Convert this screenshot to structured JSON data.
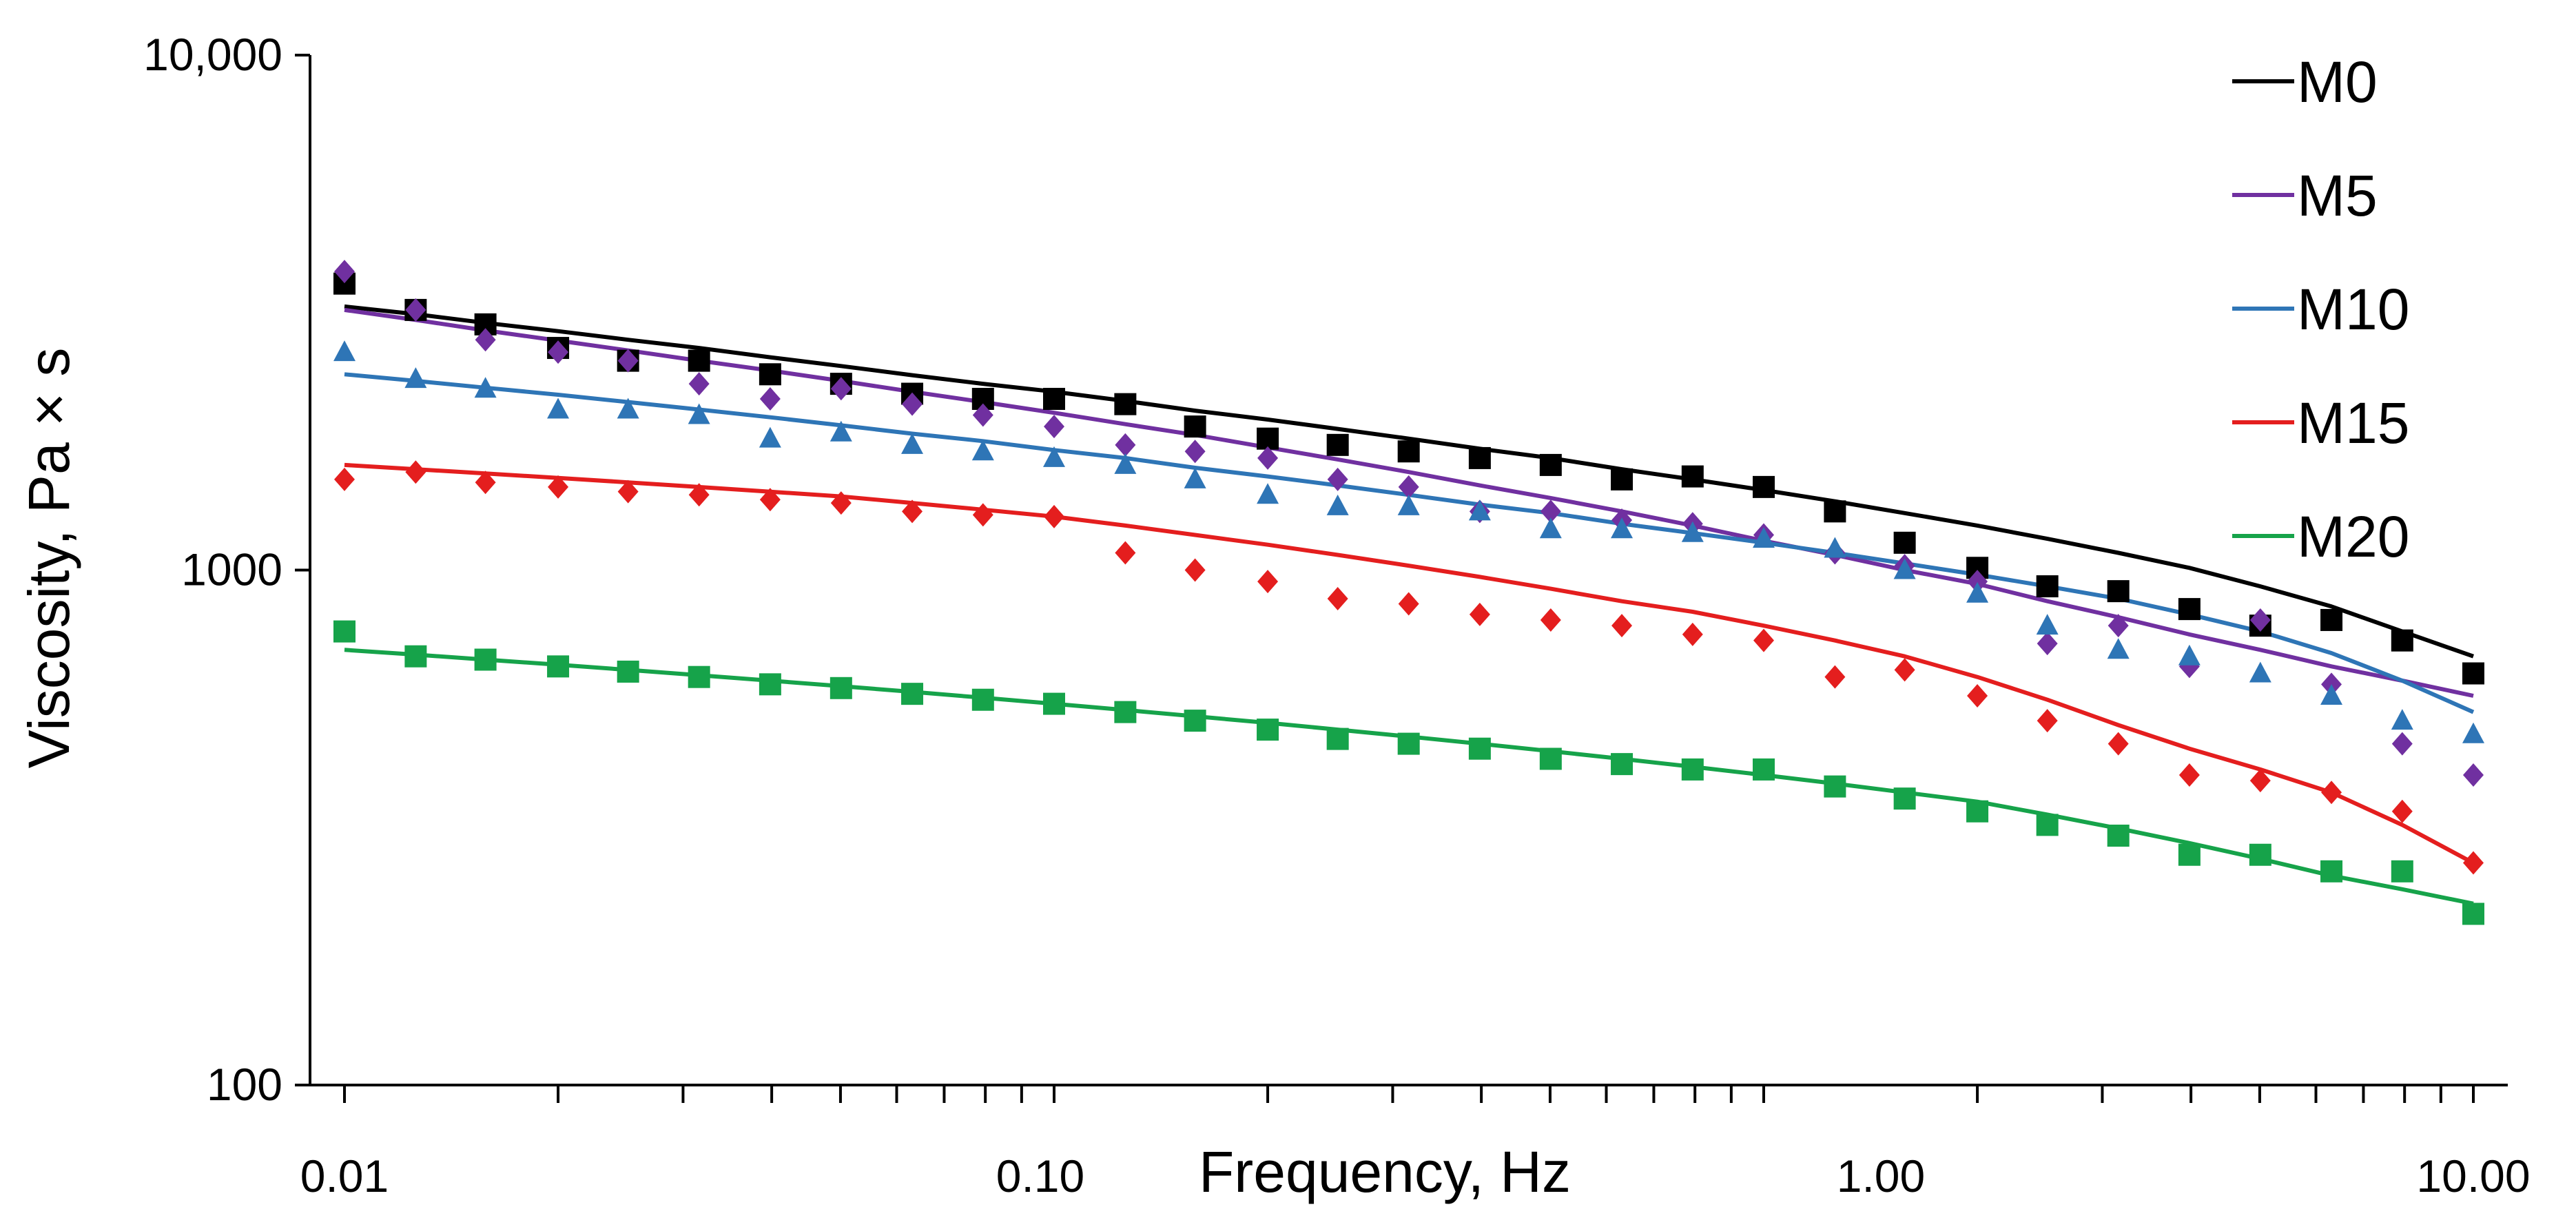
{
  "chart_data": {
    "type": "scatter",
    "title": "",
    "xlabel": "Frequency, Hz",
    "ylabel": "Viscosity, Pa × s",
    "xscale": "log",
    "yscale": "log",
    "xlim": [
      0.01,
      10
    ],
    "ylim": [
      100,
      10000
    ],
    "grid": false,
    "legend_position": "top-right",
    "x_tick_labels": [
      {
        "value": 0.01,
        "label": "0.01"
      },
      {
        "value": 0.1,
        "label": "0.10"
      },
      {
        "value": 1,
        "label": "1.00"
      },
      {
        "value": 10,
        "label": "10.00"
      }
    ],
    "y_tick_labels": [
      {
        "value": 100,
        "label": "100"
      },
      {
        "value": 1000,
        "label": "1000"
      },
      {
        "value": 10000,
        "label": "10,000"
      }
    ],
    "x": [
      0.01,
      0.0126,
      0.0158,
      0.02,
      0.0251,
      0.0316,
      0.0398,
      0.0501,
      0.0631,
      0.0794,
      0.1,
      0.126,
      0.158,
      0.2,
      0.251,
      0.316,
      0.398,
      0.501,
      0.631,
      0.794,
      1.0,
      1.26,
      1.58,
      2.0,
      2.51,
      3.16,
      3.98,
      5.01,
      6.31,
      7.94,
      10.0
    ],
    "series": [
      {
        "name": "M0",
        "color": "#000000",
        "marker": "square",
        "values": [
          3600,
          3200,
          3000,
          2700,
          2550,
          2550,
          2400,
          2300,
          2200,
          2150,
          2150,
          2100,
          1900,
          1800,
          1750,
          1700,
          1650,
          1600,
          1500,
          1520,
          1450,
          1300,
          1130,
          1010,
          930,
          910,
          840,
          780,
          800,
          730,
          630
        ],
        "fit": [
          3250,
          3140,
          3020,
          2910,
          2800,
          2700,
          2590,
          2490,
          2390,
          2300,
          2220,
          2130,
          2040,
          1960,
          1880,
          1800,
          1720,
          1650,
          1570,
          1500,
          1430,
          1360,
          1290,
          1220,
          1150,
          1080,
          1010,
          930,
          850,
          760,
          680
        ]
      },
      {
        "name": "M5",
        "color": "#7030A0",
        "marker": "diamond",
        "values": [
          3800,
          3200,
          2800,
          2650,
          2550,
          2300,
          2150,
          2250,
          2100,
          2000,
          1900,
          1750,
          1700,
          1650,
          1500,
          1450,
          1300,
          1300,
          1250,
          1230,
          1170,
          1080,
          1020,
          950,
          720,
          780,
          650,
          800,
          600,
          460,
          400
        ],
        "fit": [
          3200,
          3060,
          2920,
          2790,
          2670,
          2550,
          2440,
          2330,
          2220,
          2120,
          2020,
          1920,
          1830,
          1730,
          1640,
          1550,
          1460,
          1380,
          1300,
          1220,
          1140,
          1070,
          1000,
          940,
          870,
          810,
          750,
          700,
          650,
          610,
          570
        ]
      },
      {
        "name": "M10",
        "color": "#2E75B6",
        "marker": "triangle",
        "values": [
          2650,
          2350,
          2250,
          2050,
          2050,
          2000,
          1800,
          1850,
          1750,
          1700,
          1650,
          1600,
          1500,
          1400,
          1330,
          1330,
          1300,
          1200,
          1200,
          1180,
          1150,
          1100,
          1000,
          900,
          780,
          700,
          680,
          630,
          570,
          510,
          480
        ],
        "fit": [
          2400,
          2330,
          2260,
          2190,
          2120,
          2050,
          1980,
          1910,
          1840,
          1780,
          1710,
          1650,
          1580,
          1520,
          1460,
          1400,
          1340,
          1290,
          1230,
          1180,
          1130,
          1080,
          1030,
          980,
          930,
          880,
          820,
          760,
          690,
          610,
          530
        ]
      },
      {
        "name": "M15",
        "color": "#E41E1E",
        "marker": "diamond",
        "values": [
          1500,
          1550,
          1480,
          1450,
          1420,
          1400,
          1370,
          1350,
          1300,
          1280,
          1270,
          1080,
          1000,
          950,
          880,
          860,
          820,
          800,
          780,
          750,
          730,
          620,
          640,
          570,
          510,
          460,
          400,
          390,
          370,
          340,
          270
        ],
        "fit": [
          1600,
          1570,
          1540,
          1510,
          1480,
          1450,
          1420,
          1390,
          1350,
          1310,
          1270,
          1220,
          1170,
          1120,
          1070,
          1020,
          970,
          920,
          870,
          830,
          780,
          730,
          680,
          620,
          560,
          500,
          450,
          410,
          370,
          320,
          270
        ]
      },
      {
        "name": "M20",
        "color": "#16A34A",
        "marker": "square",
        "values": [
          760,
          680,
          670,
          650,
          635,
          620,
          600,
          590,
          575,
          560,
          550,
          530,
          510,
          490,
          470,
          460,
          450,
          430,
          420,
          410,
          410,
          380,
          360,
          340,
          320,
          305,
          280,
          280,
          260,
          260,
          215
        ],
        "fit": [
          700,
          685,
          670,
          655,
          640,
          625,
          610,
          595,
          580,
          565,
          550,
          535,
          520,
          505,
          490,
          475,
          460,
          445,
          430,
          415,
          400,
          385,
          370,
          355,
          335,
          315,
          295,
          275,
          255,
          240,
          225
        ]
      }
    ]
  }
}
